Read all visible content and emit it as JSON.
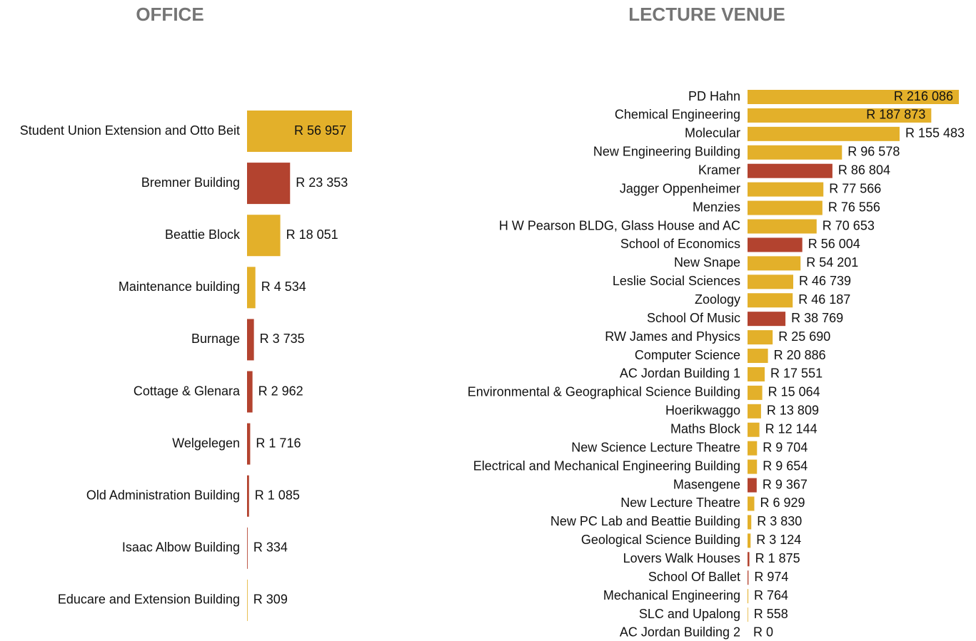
{
  "chart_data": [
    {
      "type": "barh",
      "title": "OFFICE",
      "categories": [
        "Student Union Extension and Otto Beit",
        "Bremner Building",
        "Beattie Block",
        "Maintenance building",
        "Burnage",
        "Cottage & Glenara",
        "Welgelegen",
        "Old Administration Building",
        "Isaac Albow Building",
        "Educare and Extension Building"
      ],
      "values": [
        56957,
        23353,
        18051,
        4534,
        3735,
        2962,
        1716,
        1085,
        334,
        309
      ],
      "value_labels": [
        "R 56 957",
        "R 23 353",
        "R 18 051",
        "R 4 534",
        "R 3 735",
        "R 2 962",
        "R 1 716",
        "R 1 085",
        "R 334",
        "R 309"
      ],
      "colors": [
        "#e3b02a",
        "#b3432f",
        "#e3b02a",
        "#e3b02a",
        "#b3432f",
        "#b3432f",
        "#b3432f",
        "#b3432f",
        "#b3432f",
        "#e3b02a"
      ]
    },
    {
      "type": "barh",
      "title": "LECTURE VENUE",
      "categories": [
        "PD Hahn",
        "Chemical Engineering",
        "Molecular",
        "New Engineering Building",
        "Kramer",
        "Jagger Oppenheimer",
        "Menzies",
        "H W Pearson BLDG, Glass House and AC",
        "School of Economics",
        "New Snape",
        "Leslie Social Sciences",
        "Zoology",
        "School Of Music",
        "RW James and Physics",
        "Computer Science",
        "AC Jordan Building 1",
        "Environmental & Geographical Science Building",
        "Hoerikwaggo",
        "Maths Block",
        "New Science Lecture Theatre",
        "Electrical and Mechanical Engineering Building",
        "Masengene",
        "New Lecture Theatre",
        "New PC Lab and Beattie Building",
        "Geological Science Building",
        "Lovers Walk Houses",
        "School Of Ballet",
        "Mechanical Engineering",
        "SLC and Upalong",
        "AC Jordan Building 2"
      ],
      "values": [
        216086,
        187873,
        155483,
        96578,
        86804,
        77566,
        76556,
        70653,
        56004,
        54201,
        46739,
        46187,
        38769,
        25690,
        20886,
        17551,
        15064,
        13809,
        12144,
        9704,
        9654,
        9367,
        6929,
        3830,
        3124,
        1875,
        974,
        764,
        558,
        0
      ],
      "value_labels": [
        "R 216 086",
        "R 187 873",
        "R 155 483",
        "R 96 578",
        "R 86 804",
        "R 77 566",
        "R 76 556",
        "R 70 653",
        "R 56 004",
        "R 54 201",
        "R 46 739",
        "R 46 187",
        "R 38 769",
        "R 25 690",
        "R 20 886",
        "R 17 551",
        "R 15 064",
        "R 13 809",
        "R 12 144",
        "R 9 704",
        "R 9 654",
        "R 9 367",
        "R 6 929",
        "R 3 830",
        "R 3 124",
        "R 1 875",
        "R 974",
        "R 764",
        "R 558",
        "R 0"
      ],
      "colors": [
        "#e3b02a",
        "#e3b02a",
        "#e3b02a",
        "#e3b02a",
        "#b3432f",
        "#e3b02a",
        "#e3b02a",
        "#e3b02a",
        "#b3432f",
        "#e3b02a",
        "#e3b02a",
        "#e3b02a",
        "#b3432f",
        "#e3b02a",
        "#e3b02a",
        "#e3b02a",
        "#e3b02a",
        "#e3b02a",
        "#e3b02a",
        "#e3b02a",
        "#e3b02a",
        "#b3432f",
        "#e3b02a",
        "#e3b02a",
        "#e3b02a",
        "#b3432f",
        "#b3432f",
        "#e3b02a",
        "#e3b02a",
        "#e3b02a"
      ]
    }
  ]
}
